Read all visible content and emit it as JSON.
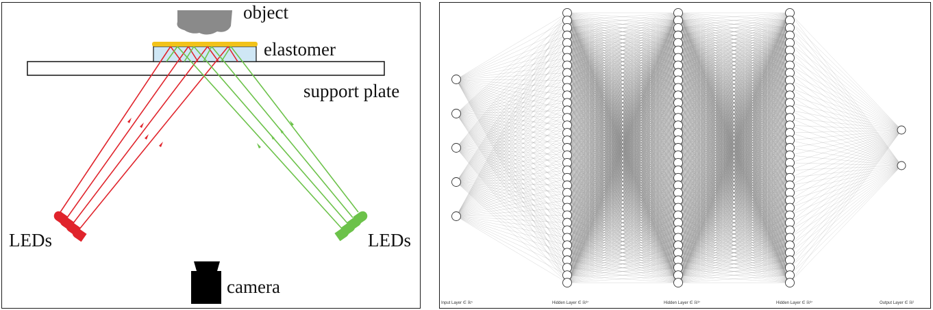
{
  "optics_diagram": {
    "labels": {
      "object": "object",
      "elastomer": "elastomer",
      "support_plate": "support plate",
      "leds_left": "LEDs",
      "leds_right": "LEDs",
      "camera": "camera"
    },
    "colors": {
      "red_light": "#e0242c",
      "green_light": "#6cc24a",
      "elastomer_coat": "#f2c21a",
      "elastomer_body": "#cfe7f5",
      "object": "#8a8a8a",
      "camera": "#000000",
      "outline": "#111111"
    }
  },
  "network_diagram": {
    "layers": [
      {
        "label": "Input Layer ∈ ℝ⁵",
        "nodes": 5
      },
      {
        "label": "Hidden Layer ∈ ℝ³⁷",
        "nodes": 37
      },
      {
        "label": "Hidden Layer ∈ ℝ³⁷",
        "nodes": 37
      },
      {
        "label": "Hidden Layer ∈ ℝ³⁷",
        "nodes": 37
      },
      {
        "label": "Output Layer ∈ ℝ²",
        "nodes": 2
      }
    ],
    "colors": {
      "edge": "#7a7a7a",
      "node_fill": "#ffffff",
      "node_stroke": "#333333"
    }
  }
}
